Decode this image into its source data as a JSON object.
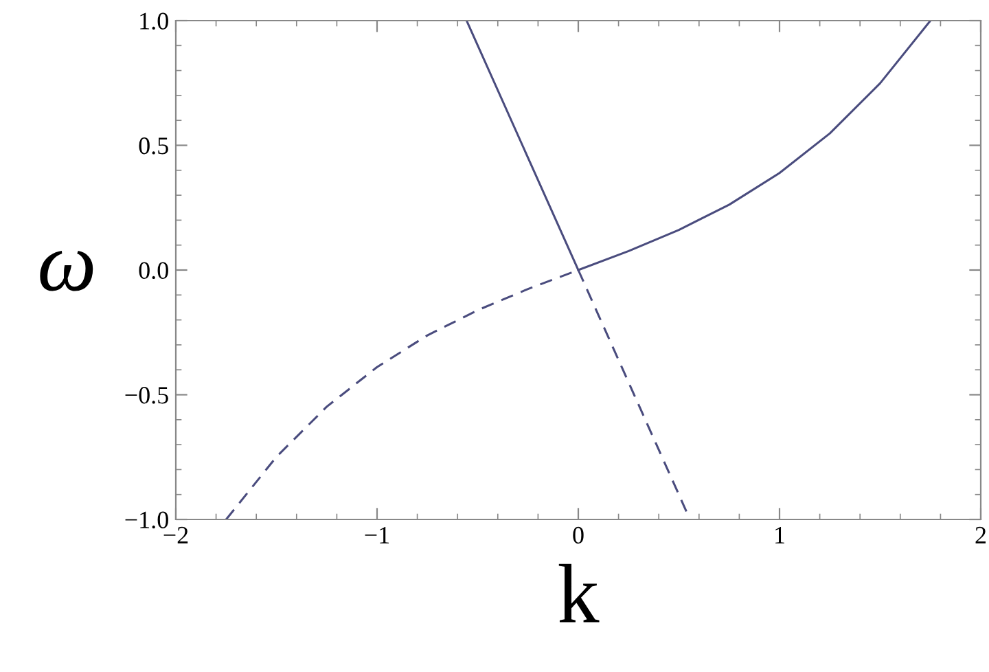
{
  "chart_data": {
    "type": "line",
    "xlabel": "k",
    "ylabel": "ω",
    "xlim": [
      -2,
      2
    ],
    "ylim": [
      -1,
      1
    ],
    "xticks": [
      {
        "value": -2,
        "label": "−2"
      },
      {
        "value": -1,
        "label": "−1"
      },
      0,
      1,
      2
    ],
    "yticks": [
      {
        "value": -1,
        "label": "−1.0"
      },
      {
        "value": -0.5,
        "label": "−0.5"
      },
      {
        "value": 0,
        "label": "0.0"
      },
      {
        "value": 0.5,
        "label": "0.5"
      },
      {
        "value": 1,
        "label": "1.0"
      }
    ],
    "grid": false,
    "legend": false,
    "marker": "none",
    "series": [
      {
        "color": "#4a4c7e",
        "line_style": "solid",
        "x": [
          0,
          0.25,
          0.5,
          0.75,
          1,
          1.25,
          1.5,
          1.75
        ],
        "values": [
          0,
          0.076,
          0.161,
          0.262,
          0.389,
          0.548,
          0.749,
          1.0
        ]
      },
      {
        "color": "#4a4c7e",
        "line_style": "dashed",
        "x": [
          -1.75,
          -1.5,
          -1.25,
          -1,
          -0.75,
          -0.5,
          -0.25,
          0
        ],
        "values": [
          -1.0,
          -0.749,
          -0.548,
          -0.389,
          -0.262,
          -0.161,
          -0.076,
          0
        ]
      },
      {
        "color": "#4a4c7e",
        "line_style": "solid",
        "x": [
          -0.555,
          0
        ],
        "values": [
          1.0,
          0
        ]
      },
      {
        "color": "#4a4c7e",
        "line_style": "dashed",
        "x": [
          0,
          0.555
        ],
        "values": [
          0,
          -1.0
        ]
      }
    ]
  }
}
